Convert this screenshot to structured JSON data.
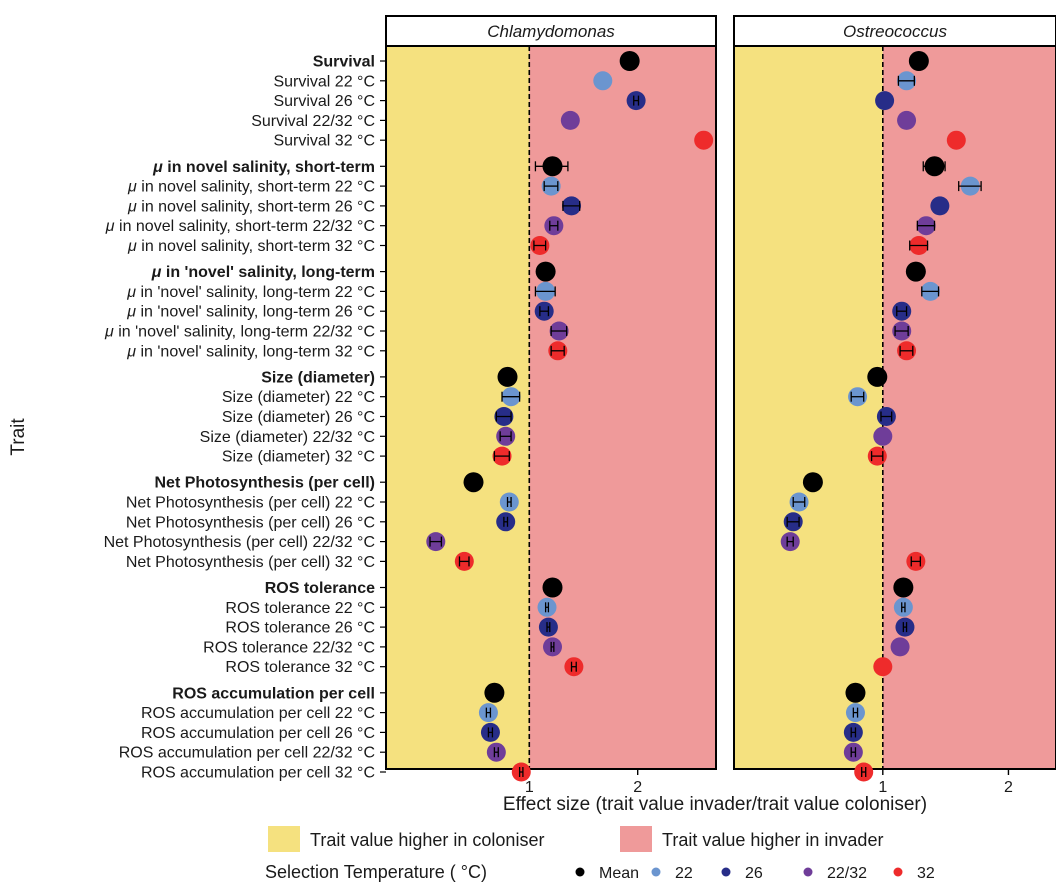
{
  "chart_data": {
    "type": "scatter",
    "xlabel": "Effect size (trait value invader/trait value coloniser)",
    "ylabel": "Trait",
    "x_ticks": [
      1,
      2
    ],
    "x_scale": "log",
    "reference_line": 1,
    "grid": false,
    "panels": [
      {
        "name": "Chlamydomonas",
        "xlim": [
          0.4,
          3.3
        ]
      },
      {
        "name": "Ostreococcus",
        "xlim": [
          0.44,
          2.6
        ]
      }
    ],
    "shading": {
      "coloniser": {
        "label": "Trait value higher in coloniser",
        "color": "#f5e17f"
      },
      "invader": {
        "label": "Trait value higher in invader",
        "color": "#ef9a9a"
      }
    },
    "legend": {
      "title": "Selection Temperature ( °C)",
      "placement": "bottom",
      "entries": [
        {
          "label": "Mean",
          "color": "#000000"
        },
        {
          "label": "22",
          "color": "#6b95cf"
        },
        {
          "label": "26",
          "color": "#272d88"
        },
        {
          "label": "22/32",
          "color": "#6f3d99"
        },
        {
          "label": "32",
          "color": "#ee2b2b"
        }
      ]
    },
    "series_colors": {
      "Mean": "#000000",
      "22": "#6b95cf",
      "26": "#272d88",
      "22/32": "#6f3d99",
      "32": "#ee2b2b"
    },
    "traits": [
      {
        "label": "Survival",
        "bold": true,
        "series": "Mean",
        "values": [
          1.9,
          1.22
        ],
        "err": [
          0,
          0
        ]
      },
      {
        "label": "Survival 22 °C",
        "series": "22",
        "values": [
          1.6,
          1.14
        ],
        "err": [
          0,
          0.05
        ]
      },
      {
        "label": "Survival 26 °C",
        "series": "26",
        "values": [
          1.98,
          1.01
        ],
        "err": [
          0.03,
          0
        ]
      },
      {
        "label": "Survival 22/32 °C",
        "series": "22/32",
        "values": [
          1.3,
          1.14
        ],
        "err": [
          0,
          0
        ]
      },
      {
        "label": "Survival 32 °C",
        "series": "32",
        "values": [
          3.05,
          1.5
        ],
        "err": [
          0,
          0
        ]
      },
      {
        "label": "μ in novel salinity, short-term",
        "bold": true,
        "series": "Mean",
        "values": [
          1.16,
          1.33
        ],
        "err": [
          0.12,
          0.08
        ]
      },
      {
        "label": "μ in novel salinity, short-term 22 °C",
        "series": "22",
        "values": [
          1.15,
          1.62
        ],
        "err": [
          0.05,
          0.1
        ]
      },
      {
        "label": "μ in novel salinity, short-term 26 °C",
        "series": "26",
        "values": [
          1.31,
          1.37
        ],
        "err": [
          0.07,
          0
        ]
      },
      {
        "label": "μ in novel salinity, short-term 22/32 °C",
        "series": "22/32",
        "values": [
          1.17,
          1.27
        ],
        "err": [
          0.03,
          0.06
        ]
      },
      {
        "label": "μ in novel salinity, short-term 32 °C",
        "series": "32",
        "values": [
          1.07,
          1.22
        ],
        "err": [
          0.04,
          0.06
        ]
      },
      {
        "label": "μ in 'novel' salinity, long-term",
        "bold": true,
        "series": "Mean",
        "values": [
          1.11,
          1.2
        ],
        "err": [
          0.04,
          0.03
        ]
      },
      {
        "label": "μ in 'novel' salinity, long-term 22 °C",
        "series": "22",
        "values": [
          1.11,
          1.3
        ],
        "err": [
          0.07,
          0.06
        ]
      },
      {
        "label": "μ in 'novel' salinity, long-term 26 °C",
        "series": "26",
        "values": [
          1.1,
          1.11
        ],
        "err": [
          0.03,
          0.03
        ]
      },
      {
        "label": "μ in 'novel' salinity, long-term 22/32 °C",
        "series": "22/32",
        "values": [
          1.21,
          1.11
        ],
        "err": [
          0.06,
          0.04
        ]
      },
      {
        "label": "μ in 'novel' salinity, long-term 32 °C",
        "series": "32",
        "values": [
          1.2,
          1.14
        ],
        "err": [
          0.05,
          0.04
        ]
      },
      {
        "label": "Size (diameter)",
        "bold": true,
        "series": "Mean",
        "values": [
          0.87,
          0.97
        ],
        "err": [
          0,
          0
        ]
      },
      {
        "label": "Size (diameter) 22 °C",
        "series": "22",
        "values": [
          0.89,
          0.87
        ],
        "err": [
          0.05,
          0.03
        ]
      },
      {
        "label": "Size (diameter) 26 °C",
        "series": "26",
        "values": [
          0.85,
          1.02
        ],
        "err": [
          0.04,
          0.03
        ]
      },
      {
        "label": "Size (diameter) 22/32 °C",
        "series": "22/32",
        "values": [
          0.86,
          1.0
        ],
        "err": [
          0.03,
          0
        ]
      },
      {
        "label": "Size (diameter) 32 °C",
        "series": "32",
        "values": [
          0.84,
          0.97
        ],
        "err": [
          0.04,
          0.03
        ]
      },
      {
        "label": "Net Photosynthesis (per cell)",
        "bold": true,
        "series": "Mean",
        "values": [
          0.7,
          0.68
        ],
        "err": [
          0,
          0
        ]
      },
      {
        "label": "Net Photosynthesis (per cell) 22 °C",
        "series": "22",
        "values": [
          0.88,
          0.63
        ],
        "err": [
          0.01,
          0.02
        ]
      },
      {
        "label": "Net Photosynthesis (per cell) 26 °C",
        "series": "26",
        "values": [
          0.86,
          0.61
        ],
        "err": [
          0.01,
          0.02
        ]
      },
      {
        "label": "Net Photosynthesis (per cell) 22/32 °C",
        "series": "22/32",
        "values": [
          0.55,
          0.6
        ],
        "err": [
          0.02,
          0.01
        ]
      },
      {
        "label": "Net Photosynthesis (per cell) 32 °C",
        "series": "32",
        "values": [
          0.66,
          1.2
        ],
        "err": [
          0.02,
          0.03
        ]
      },
      {
        "label": "ROS  tolerance",
        "bold": true,
        "series": "Mean",
        "values": [
          1.16,
          1.12
        ],
        "err": [
          0,
          0
        ]
      },
      {
        "label": "ROS  tolerance 22 °C",
        "series": "22",
        "values": [
          1.12,
          1.12
        ],
        "err": [
          0.01,
          0.01
        ]
      },
      {
        "label": "ROS  tolerance 26 °C",
        "series": "26",
        "values": [
          1.13,
          1.13
        ],
        "err": [
          0.01,
          0.01
        ]
      },
      {
        "label": "ROS  tolerance 22/32 °C",
        "series": "22/32",
        "values": [
          1.16,
          1.1
        ],
        "err": [
          0.01,
          0
        ]
      },
      {
        "label": "ROS  tolerance 32 °C",
        "series": "32",
        "values": [
          1.33,
          1.0
        ],
        "err": [
          0.02,
          0
        ]
      },
      {
        "label": "ROS accumulation per cell",
        "bold": true,
        "series": "Mean",
        "values": [
          0.8,
          0.86
        ],
        "err": [
          0,
          0
        ]
      },
      {
        "label": "ROS accumulation per cell 22 °C",
        "series": "22",
        "values": [
          0.77,
          0.86
        ],
        "err": [
          0.01,
          0.01
        ]
      },
      {
        "label": "ROS accumulation per cell 26 °C",
        "series": "26",
        "values": [
          0.78,
          0.85
        ],
        "err": [
          0.01,
          0.01
        ]
      },
      {
        "label": "ROS accumulation per cell 22/32 °C",
        "series": "22/32",
        "values": [
          0.81,
          0.85
        ],
        "err": [
          0.01,
          0.01
        ]
      },
      {
        "label": "ROS accumulation per cell 32 °C",
        "series": "32",
        "values": [
          0.95,
          0.9
        ],
        "err": [
          0.01,
          0.01
        ]
      }
    ]
  }
}
